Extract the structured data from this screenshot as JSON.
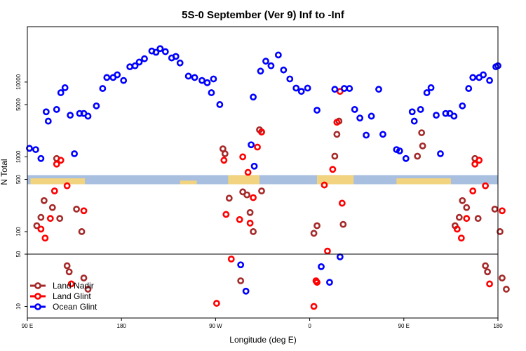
{
  "chart_data": {
    "type": "scatter",
    "title": "5S-0 September (Ver 9)   Inf to -Inf",
    "xlabel": "Longitude (deg E)",
    "ylabel": "N Total",
    "x_scale": "linear",
    "y_scale": "log",
    "xlim": [
      90,
      540
    ],
    "ylim": [
      7,
      55000
    ],
    "x_ticks": [
      {
        "value": 90,
        "label": "90 E"
      },
      {
        "value": 180,
        "label": "180"
      },
      {
        "value": 270,
        "label": "90 W"
      },
      {
        "value": 360,
        "label": "0"
      },
      {
        "value": 450,
        "label": "90 E"
      },
      {
        "value": 540,
        "label": "180"
      }
    ],
    "y_ticks": [
      {
        "value": 10,
        "label": "10"
      },
      {
        "value": 50,
        "label": "50"
      },
      {
        "value": 100,
        "label": "100"
      },
      {
        "value": 500,
        "label": "500"
      },
      {
        "value": 1000,
        "label": "1000"
      },
      {
        "value": 5000,
        "label": "5000"
      },
      {
        "value": 10000,
        "label": "10000"
      }
    ],
    "reference_line": {
      "y": 50
    },
    "map_strip": {
      "y_range": [
        430,
        570
      ],
      "colors": {
        "ocean": "#a8bfe0",
        "land": "#f5d57a"
      }
    },
    "legend": {
      "position": "bottom-left"
    },
    "series": [
      {
        "name": "Land Nadir",
        "color": "#a52a2a",
        "points": [
          [
            99,
            120
          ],
          [
            103,
            155
          ],
          [
            106,
            260
          ],
          [
            114,
            210
          ],
          [
            118,
            950
          ],
          [
            121,
            150
          ],
          [
            128,
            35
          ],
          [
            130,
            29
          ],
          [
            137,
            200
          ],
          [
            142,
            100
          ],
          [
            144,
            24
          ],
          [
            148,
            17
          ],
          [
            277,
            1280
          ],
          [
            279,
            1100
          ],
          [
            283,
            280
          ],
          [
            294,
            22
          ],
          [
            296,
            340
          ],
          [
            300,
            310
          ],
          [
            303,
            180
          ],
          [
            306,
            100
          ],
          [
            312,
            2300
          ],
          [
            314,
            2150
          ],
          [
            314,
            350
          ],
          [
            364,
            95
          ],
          [
            367,
            120
          ],
          [
            384,
            1020
          ],
          [
            386,
            2000
          ],
          [
            388,
            3000
          ],
          [
            392,
            125
          ],
          [
            499,
            120
          ],
          [
            463,
            1020
          ],
          [
            467,
            2100
          ],
          [
            468,
            1400
          ],
          [
            503,
            155
          ],
          [
            506,
            260
          ],
          [
            510,
            210
          ],
          [
            518,
            950
          ],
          [
            521,
            150
          ],
          [
            528,
            35
          ],
          [
            530,
            29
          ],
          [
            537,
            200
          ],
          [
            542,
            100
          ],
          [
            544,
            24
          ],
          [
            548,
            17
          ]
        ]
      },
      {
        "name": "Land Glint",
        "color": "#ff0000",
        "points": [
          [
            103,
            108
          ],
          [
            107,
            82
          ],
          [
            112,
            150
          ],
          [
            116,
            350
          ],
          [
            118,
            800
          ],
          [
            122,
            900
          ],
          [
            128,
            410
          ],
          [
            132,
            20
          ],
          [
            144,
            190
          ],
          [
            271,
            11
          ],
          [
            278,
            900
          ],
          [
            280,
            170
          ],
          [
            285,
            43
          ],
          [
            293,
            145
          ],
          [
            296,
            1000
          ],
          [
            301,
            620
          ],
          [
            303,
            130
          ],
          [
            306,
            285
          ],
          [
            310,
            1350
          ],
          [
            314,
            2150
          ],
          [
            364,
            10
          ],
          [
            366,
            22
          ],
          [
            367,
            21
          ],
          [
            374,
            420
          ],
          [
            377,
            55
          ],
          [
            382,
            680
          ],
          [
            386,
            2900
          ],
          [
            389,
            7500
          ],
          [
            391,
            240
          ],
          [
            501,
            108
          ],
          [
            505,
            82
          ],
          [
            510,
            150
          ],
          [
            516,
            350
          ],
          [
            518,
            800
          ],
          [
            522,
            900
          ],
          [
            528,
            410
          ],
          [
            532,
            20
          ],
          [
            544,
            190
          ]
        ]
      },
      {
        "name": "Ocean Glint",
        "color": "#0000ff",
        "points": [
          [
            92,
            1300
          ],
          [
            98,
            1250
          ],
          [
            103,
            950
          ],
          [
            108,
            4000
          ],
          [
            110,
            3000
          ],
          [
            118,
            4300
          ],
          [
            122,
            7200
          ],
          [
            126,
            8400
          ],
          [
            131,
            3600
          ],
          [
            135,
            1100
          ],
          [
            140,
            3800
          ],
          [
            144,
            3800
          ],
          [
            148,
            3500
          ],
          [
            156,
            4800
          ],
          [
            162,
            8200
          ],
          [
            166,
            11500
          ],
          [
            172,
            11500
          ],
          [
            176,
            12500
          ],
          [
            182,
            10500
          ],
          [
            188,
            16000
          ],
          [
            193,
            16500
          ],
          [
            197,
            18500
          ],
          [
            202,
            20500
          ],
          [
            209,
            26000
          ],
          [
            213,
            25000
          ],
          [
            217,
            28000
          ],
          [
            222,
            25500
          ],
          [
            228,
            21000
          ],
          [
            232,
            22000
          ],
          [
            236,
            18000
          ],
          [
            244,
            12000
          ],
          [
            250,
            11500
          ],
          [
            257,
            10500
          ],
          [
            262,
            9800
          ],
          [
            266,
            7200
          ],
          [
            268,
            11000
          ],
          [
            274,
            5000
          ],
          [
            294,
            36
          ],
          [
            299,
            16
          ],
          [
            304,
            1450
          ],
          [
            306,
            6300
          ],
          [
            307,
            750
          ],
          [
            313,
            14000
          ],
          [
            318,
            19000
          ],
          [
            323,
            16500
          ],
          [
            330,
            23000
          ],
          [
            335,
            14500
          ],
          [
            341,
            11000
          ],
          [
            347,
            8300
          ],
          [
            352,
            7500
          ],
          [
            358,
            8300
          ],
          [
            367,
            4200
          ],
          [
            371,
            34
          ],
          [
            379,
            21
          ],
          [
            384,
            8000
          ],
          [
            389,
            46
          ],
          [
            393,
            8200
          ],
          [
            398,
            8200
          ],
          [
            403,
            4300
          ],
          [
            408,
            3300
          ],
          [
            414,
            1950
          ],
          [
            419,
            3500
          ],
          [
            426,
            8000
          ],
          [
            430,
            2000
          ],
          [
            443,
            1250
          ],
          [
            446,
            1200
          ],
          [
            452,
            950
          ],
          [
            458,
            4000
          ],
          [
            460,
            3000
          ],
          [
            466,
            4300
          ],
          [
            472,
            7200
          ],
          [
            476,
            8400
          ],
          [
            481,
            3600
          ],
          [
            485,
            1100
          ],
          [
            490,
            3800
          ],
          [
            494,
            3800
          ],
          [
            498,
            3500
          ],
          [
            506,
            4800
          ],
          [
            512,
            8200
          ],
          [
            516,
            11500
          ],
          [
            522,
            11500
          ],
          [
            526,
            12500
          ],
          [
            532,
            10500
          ],
          [
            538,
            16000
          ],
          [
            540,
            16500
          ]
        ]
      }
    ]
  }
}
